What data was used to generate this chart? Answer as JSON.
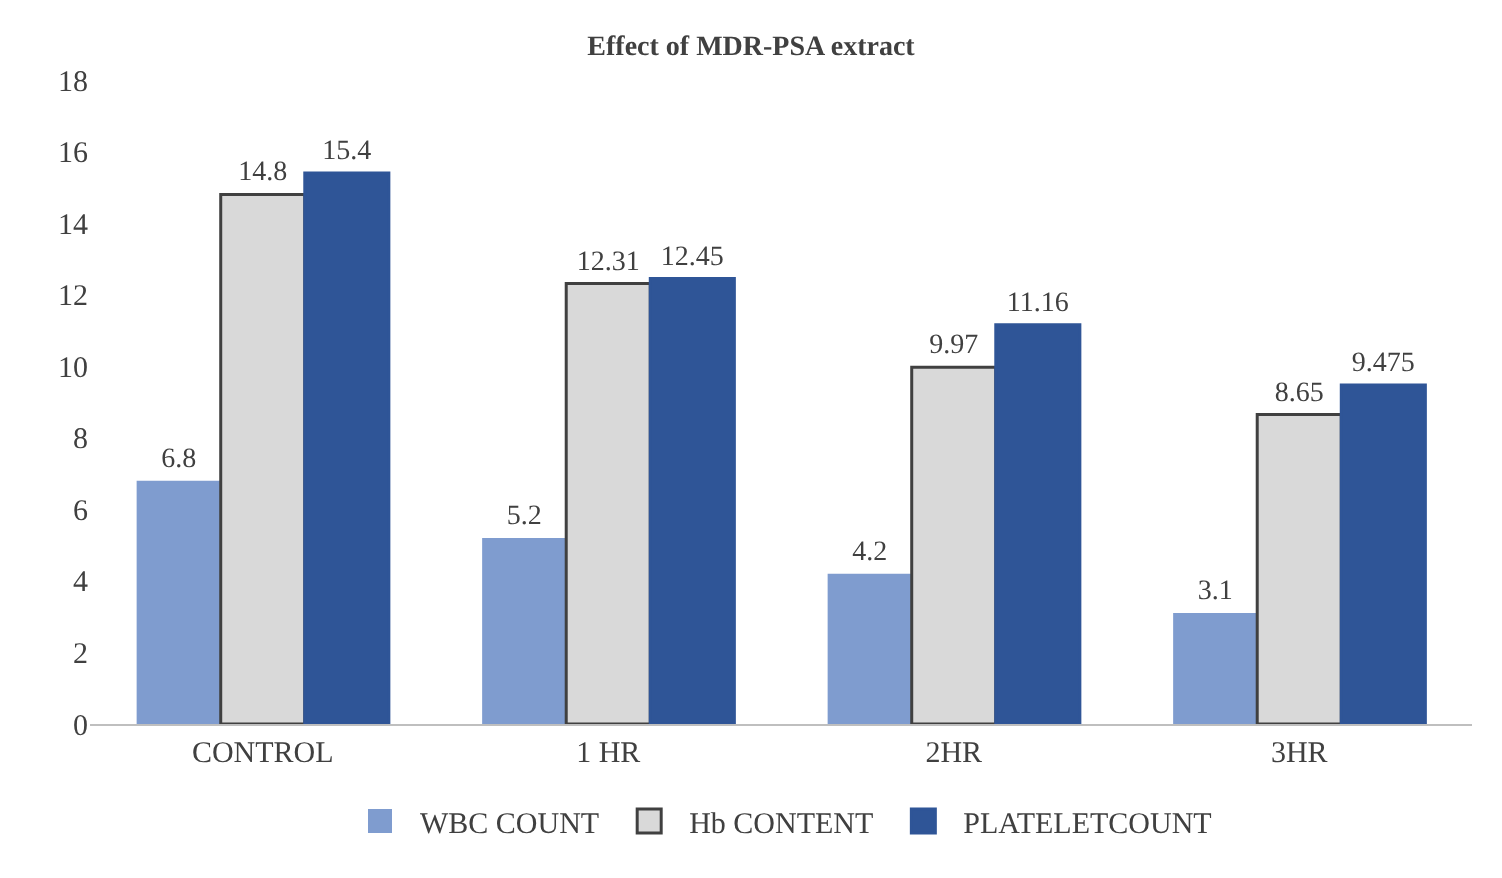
{
  "chart_data": {
    "type": "bar",
    "title": "Effect of MDR-PSA extract",
    "categories": [
      "CONTROL",
      "1 HR",
      "2HR",
      "3HR"
    ],
    "series": [
      {
        "name": "WBC COUNT",
        "color": "#7f9ccf",
        "values": [
          6.8,
          5.2,
          4.2,
          3.1
        ]
      },
      {
        "name": "Hb CONTENT",
        "color": "#d9d9d9",
        "values": [
          14.8,
          12.31,
          9.97,
          8.65
        ]
      },
      {
        "name": "PLATELETCOUNT",
        "color": "#2f5597",
        "values": [
          15.4,
          12.45,
          11.16,
          9.475
        ]
      }
    ],
    "ylim": [
      0,
      18
    ],
    "yticks": [
      0,
      2,
      4,
      6,
      8,
      10,
      12,
      14,
      16,
      18
    ],
    "legend": "bottom",
    "data_labels": true
  }
}
